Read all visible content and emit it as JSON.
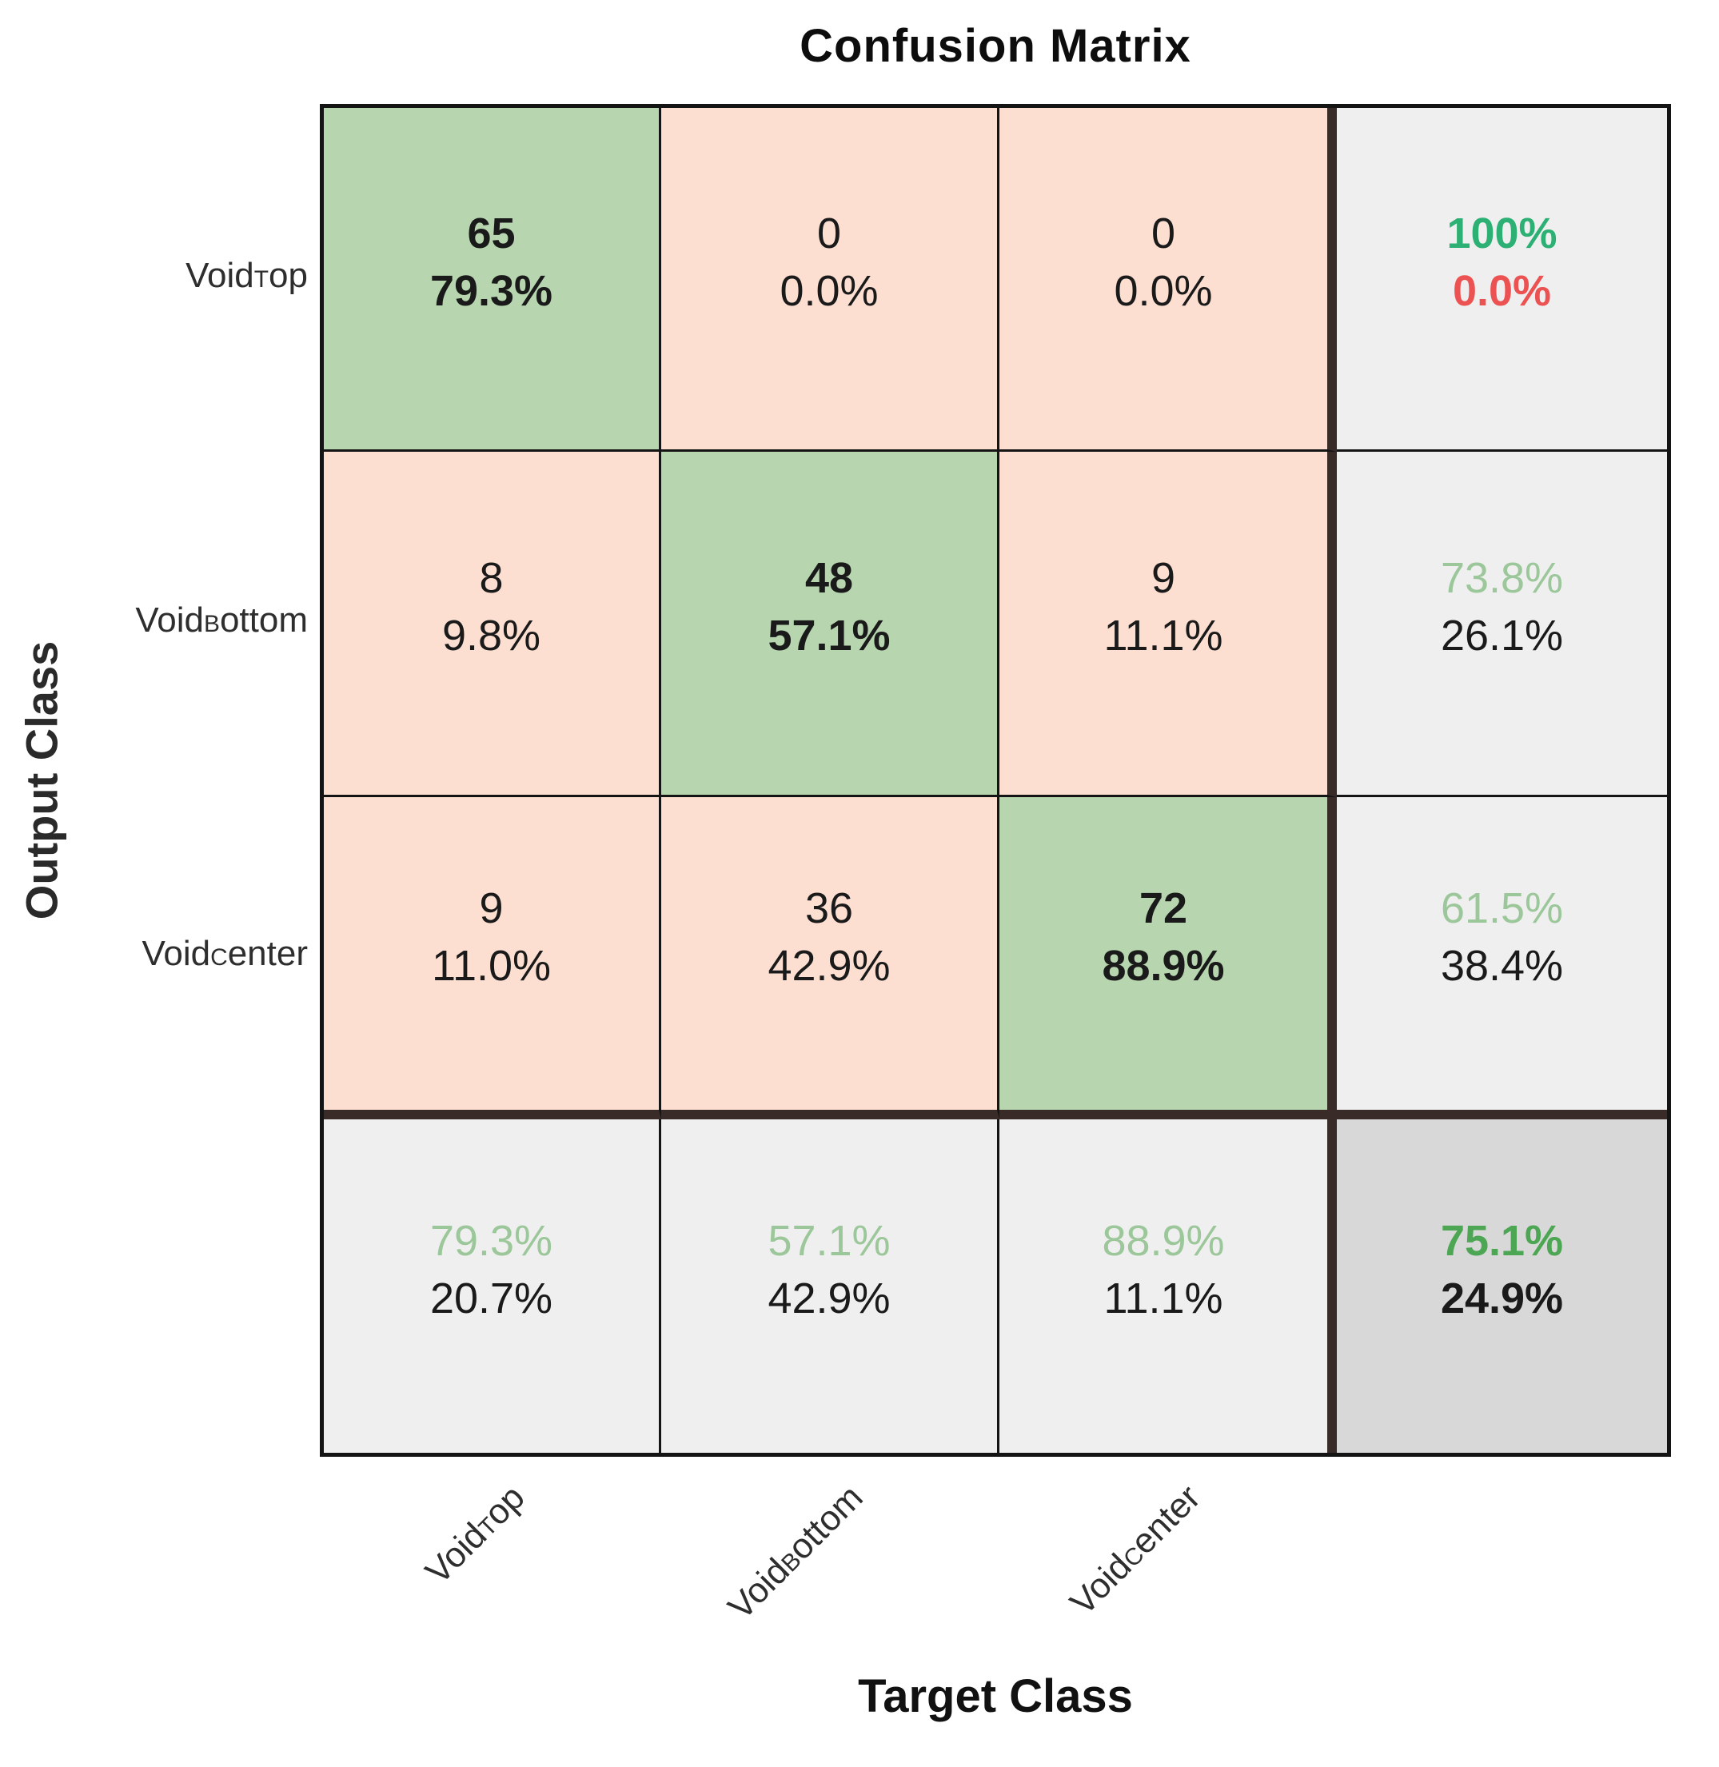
{
  "palette": {
    "diag-bg": "#b7d6af",
    "offdiag-bg": "#fcdfd1",
    "summary-bg": "#efefef",
    "total-bg": "#d8d8d8",
    "grid-line": "#141414",
    "thick-line": "#382b28",
    "green-strong": "#2cb073",
    "green-pale": "#9cc79a",
    "green-total": "#4da653",
    "red": "#ec5252",
    "text": "#1a1a1a"
  },
  "title": "Confusion Matrix",
  "axes": {
    "x": "Target Class",
    "y": "Output Class"
  },
  "class_labels": [
    {
      "pre": "Void",
      "sub": "T",
      "post": "op"
    },
    {
      "pre": "Void",
      "sub": "B",
      "post": "ottom"
    },
    {
      "pre": "Void",
      "sub": "C",
      "post": "enter"
    }
  ],
  "chart_data": {
    "type": "heatmap",
    "title": "Confusion Matrix",
    "xlabel": "Target Class",
    "ylabel": "Output Class",
    "classes": [
      "Void_Top",
      "Void_Bottom",
      "Void_Center"
    ],
    "counts": [
      [
        65,
        0,
        0
      ],
      [
        8,
        48,
        9
      ],
      [
        9,
        36,
        72
      ]
    ],
    "cell_percents": [
      [
        "79.3%",
        "0.0%",
        "0.0%"
      ],
      [
        "9.8%",
        "57.1%",
        "11.1%"
      ],
      [
        "11.0%",
        "42.9%",
        "88.9%"
      ]
    ],
    "row_summary": [
      [
        "100%",
        "0.0%"
      ],
      [
        "73.8%",
        "26.1%"
      ],
      [
        "61.5%",
        "38.4%"
      ]
    ],
    "col_summary": [
      [
        "79.3%",
        "20.7%"
      ],
      [
        "57.1%",
        "42.9%"
      ],
      [
        "88.9%",
        "11.1%"
      ]
    ],
    "overall": [
      "75.1%",
      "24.9%"
    ]
  }
}
